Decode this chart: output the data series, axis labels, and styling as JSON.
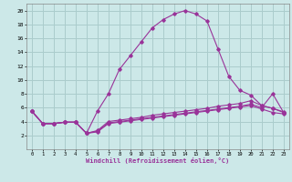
{
  "xlabel": "Windchill (Refroidissement éolien,°C)",
  "background_color": "#cce8e8",
  "grid_color": "#aacccc",
  "line_color": "#993399",
  "xlim": [
    -0.5,
    23.5
  ],
  "ylim": [
    0,
    21
  ],
  "xticks": [
    0,
    1,
    2,
    3,
    4,
    5,
    6,
    7,
    8,
    9,
    10,
    11,
    12,
    13,
    14,
    15,
    16,
    17,
    18,
    19,
    20,
    21,
    22,
    23
  ],
  "yticks": [
    2,
    4,
    6,
    8,
    10,
    12,
    14,
    16,
    18,
    20
  ],
  "line1_x": [
    0,
    1,
    2,
    3,
    4,
    5,
    6,
    7,
    8,
    9,
    10,
    11,
    12,
    13,
    14,
    15,
    16,
    17,
    18,
    19,
    20,
    21,
    22,
    23
  ],
  "line1_y": [
    5.5,
    3.7,
    3.7,
    3.9,
    3.9,
    2.3,
    5.5,
    8.0,
    11.5,
    13.5,
    15.5,
    17.5,
    18.7,
    19.5,
    20.0,
    19.5,
    18.5,
    14.5,
    10.5,
    8.5,
    7.8,
    6.3,
    5.9,
    5.3
  ],
  "line2_x": [
    0,
    1,
    2,
    3,
    4,
    5,
    6,
    7,
    8,
    9,
    10,
    11,
    12,
    13,
    14,
    15,
    16,
    17,
    18,
    19,
    20,
    21,
    22,
    23
  ],
  "line2_y": [
    5.5,
    3.7,
    3.7,
    3.9,
    3.9,
    2.3,
    2.7,
    4.0,
    4.2,
    4.4,
    4.6,
    4.9,
    5.1,
    5.3,
    5.5,
    5.7,
    5.9,
    6.2,
    6.4,
    6.6,
    7.0,
    6.3,
    5.9,
    5.4
  ],
  "line3_x": [
    0,
    1,
    2,
    3,
    4,
    5,
    6,
    7,
    8,
    9,
    10,
    11,
    12,
    13,
    14,
    15,
    16,
    17,
    18,
    19,
    20,
    21,
    22,
    23
  ],
  "line3_y": [
    5.5,
    3.7,
    3.7,
    3.9,
    3.9,
    2.3,
    2.6,
    3.8,
    4.0,
    4.2,
    4.4,
    4.6,
    4.8,
    5.0,
    5.2,
    5.4,
    5.6,
    5.8,
    6.0,
    6.2,
    6.5,
    6.0,
    8.0,
    5.3
  ],
  "line4_x": [
    0,
    1,
    2,
    3,
    4,
    5,
    6,
    7,
    8,
    9,
    10,
    11,
    12,
    13,
    14,
    15,
    16,
    17,
    18,
    19,
    20,
    21,
    22,
    23
  ],
  "line4_y": [
    5.5,
    3.7,
    3.7,
    3.9,
    3.9,
    2.3,
    2.5,
    3.7,
    3.9,
    4.1,
    4.3,
    4.5,
    4.7,
    4.9,
    5.1,
    5.3,
    5.5,
    5.7,
    5.9,
    6.1,
    6.3,
    5.8,
    5.3,
    5.1
  ]
}
